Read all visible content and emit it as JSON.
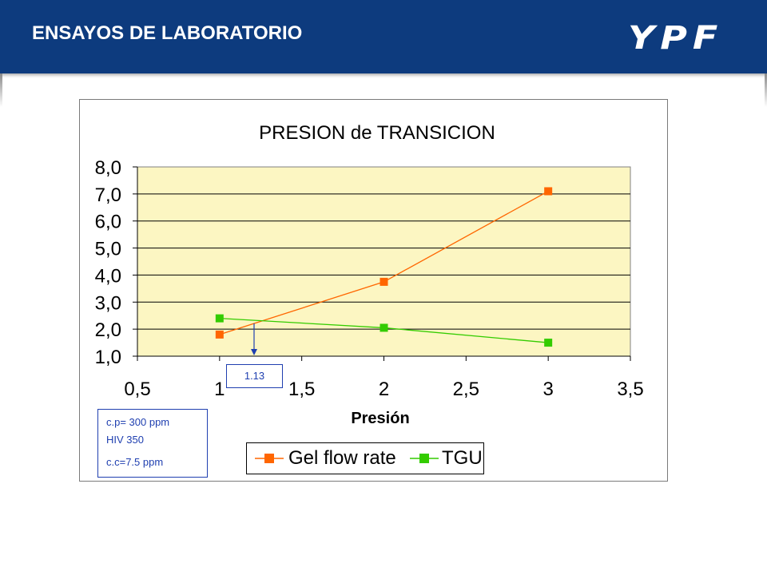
{
  "header": {
    "title": "ENSAYOS DE LABORATORIO",
    "logo_text": "YPF"
  },
  "colors": {
    "header_bg": "#0d3b7e",
    "plot_bg": "#fcf6c2",
    "gel_series": "#ff6600",
    "tgu_series": "#33cc00",
    "annotation": "#1f3fb0"
  },
  "chart_data": {
    "type": "line",
    "title": "PRESION de TRANSICION",
    "xlabel": "Presión",
    "ylabel": "",
    "xlim": [
      0.5,
      3.5
    ],
    "ylim": [
      1.0,
      8.0
    ],
    "x_ticks": [
      "0,5",
      "1",
      "1,5",
      "2",
      "2,5",
      "3",
      "3,5"
    ],
    "y_ticks": [
      "1,0",
      "2,0",
      "3,0",
      "4,0",
      "5,0",
      "6,0",
      "7,0",
      "8,0"
    ],
    "grid": "horizontal",
    "legend_position": "bottom",
    "series": [
      {
        "name": "Gel flow rate",
        "x": [
          1,
          2,
          3
        ],
        "values": [
          1.8,
          3.75,
          7.1
        ],
        "marker": "square",
        "color": "#ff6600"
      },
      {
        "name": "TGU",
        "x": [
          1,
          2,
          3
        ],
        "values": [
          2.4,
          2.05,
          1.5
        ],
        "marker": "square",
        "color": "#33cc00"
      }
    ],
    "annotation": {
      "text": "1.13",
      "x": 1.23
    }
  },
  "notes": {
    "line1": "c.p= 300 ppm",
    "line2": "HIV 350",
    "line3": "c.c=7.5 ppm"
  }
}
